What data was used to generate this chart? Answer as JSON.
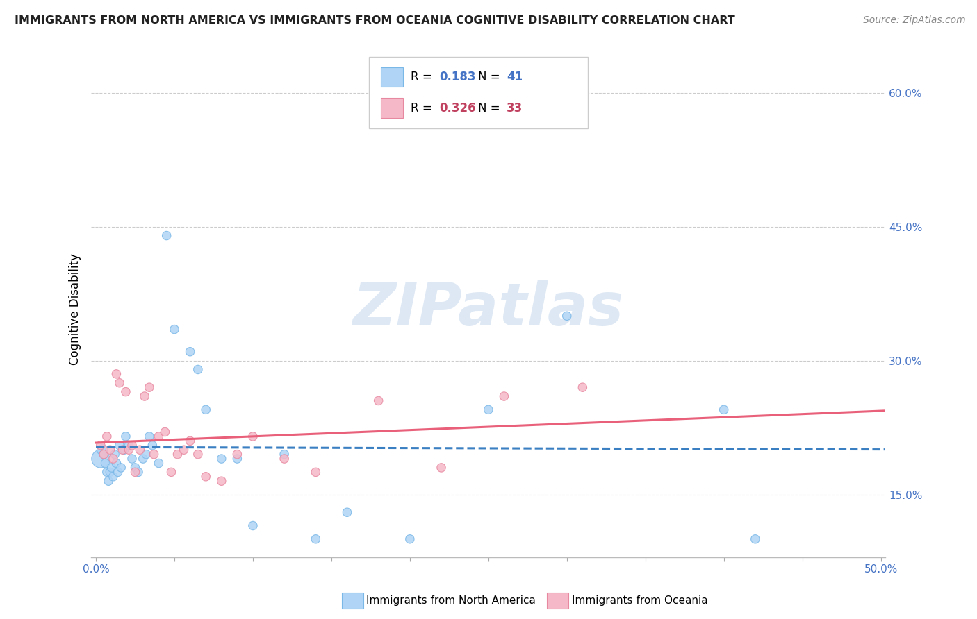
{
  "title": "IMMIGRANTS FROM NORTH AMERICA VS IMMIGRANTS FROM OCEANIA COGNITIVE DISABILITY CORRELATION CHART",
  "source": "Source: ZipAtlas.com",
  "ylabel": "Cognitive Disability",
  "xlim": [
    -0.003,
    0.503
  ],
  "ylim": [
    0.08,
    0.635
  ],
  "xtick_positions": [
    0.0,
    0.05,
    0.1,
    0.15,
    0.2,
    0.25,
    0.3,
    0.35,
    0.4,
    0.45,
    0.5
  ],
  "ytick_positions": [
    0.15,
    0.3,
    0.45,
    0.6
  ],
  "ytick_labels": [
    "15.0%",
    "30.0%",
    "45.0%",
    "60.0%"
  ],
  "series1_name": "Immigrants from North America",
  "series1_color": "#afd4f5",
  "series1_edge": "#7ab8e8",
  "series1_line_color": "#3a7fc1",
  "series1_R": 0.183,
  "series1_N": 41,
  "series2_name": "Immigrants from Oceania",
  "series2_color": "#f5b8c8",
  "series2_edge": "#e888a0",
  "series2_line_color": "#e8607a",
  "series2_R": 0.326,
  "series2_N": 33,
  "watermark": "ZIPatlas",
  "na_x": [
    0.003,
    0.004,
    0.005,
    0.006,
    0.007,
    0.008,
    0.009,
    0.01,
    0.011,
    0.012,
    0.013,
    0.014,
    0.015,
    0.016,
    0.018,
    0.019,
    0.021,
    0.023,
    0.025,
    0.027,
    0.03,
    0.032,
    0.034,
    0.036,
    0.04,
    0.045,
    0.05,
    0.06,
    0.065,
    0.07,
    0.08,
    0.09,
    0.1,
    0.12,
    0.14,
    0.16,
    0.2,
    0.25,
    0.3,
    0.4,
    0.42
  ],
  "na_y": [
    0.19,
    0.2,
    0.195,
    0.185,
    0.175,
    0.165,
    0.175,
    0.18,
    0.17,
    0.195,
    0.185,
    0.175,
    0.205,
    0.18,
    0.2,
    0.215,
    0.205,
    0.19,
    0.18,
    0.175,
    0.19,
    0.195,
    0.215,
    0.205,
    0.185,
    0.44,
    0.335,
    0.31,
    0.29,
    0.245,
    0.19,
    0.19,
    0.115,
    0.195,
    0.1,
    0.13,
    0.1,
    0.245,
    0.35,
    0.245,
    0.1
  ],
  "na_size": [
    350,
    120,
    80,
    80,
    80,
    80,
    80,
    80,
    80,
    80,
    80,
    80,
    80,
    80,
    80,
    80,
    80,
    80,
    80,
    80,
    80,
    80,
    80,
    80,
    80,
    80,
    80,
    80,
    80,
    80,
    80,
    80,
    80,
    80,
    80,
    80,
    80,
    80,
    80,
    80,
    80
  ],
  "oc_x": [
    0.003,
    0.005,
    0.007,
    0.009,
    0.011,
    0.013,
    0.015,
    0.017,
    0.019,
    0.021,
    0.023,
    0.025,
    0.028,
    0.031,
    0.034,
    0.037,
    0.04,
    0.044,
    0.048,
    0.052,
    0.056,
    0.06,
    0.065,
    0.07,
    0.08,
    0.09,
    0.1,
    0.12,
    0.14,
    0.18,
    0.22,
    0.26,
    0.31
  ],
  "oc_y": [
    0.205,
    0.195,
    0.215,
    0.2,
    0.19,
    0.285,
    0.275,
    0.2,
    0.265,
    0.2,
    0.205,
    0.175,
    0.2,
    0.26,
    0.27,
    0.195,
    0.215,
    0.22,
    0.175,
    0.195,
    0.2,
    0.21,
    0.195,
    0.17,
    0.165,
    0.195,
    0.215,
    0.19,
    0.175,
    0.255,
    0.18,
    0.26,
    0.27
  ],
  "oc_size": [
    80,
    80,
    80,
    80,
    80,
    80,
    80,
    80,
    80,
    80,
    80,
    80,
    80,
    80,
    80,
    80,
    80,
    80,
    80,
    80,
    80,
    80,
    80,
    80,
    80,
    80,
    80,
    80,
    80,
    80,
    80,
    80,
    80
  ]
}
